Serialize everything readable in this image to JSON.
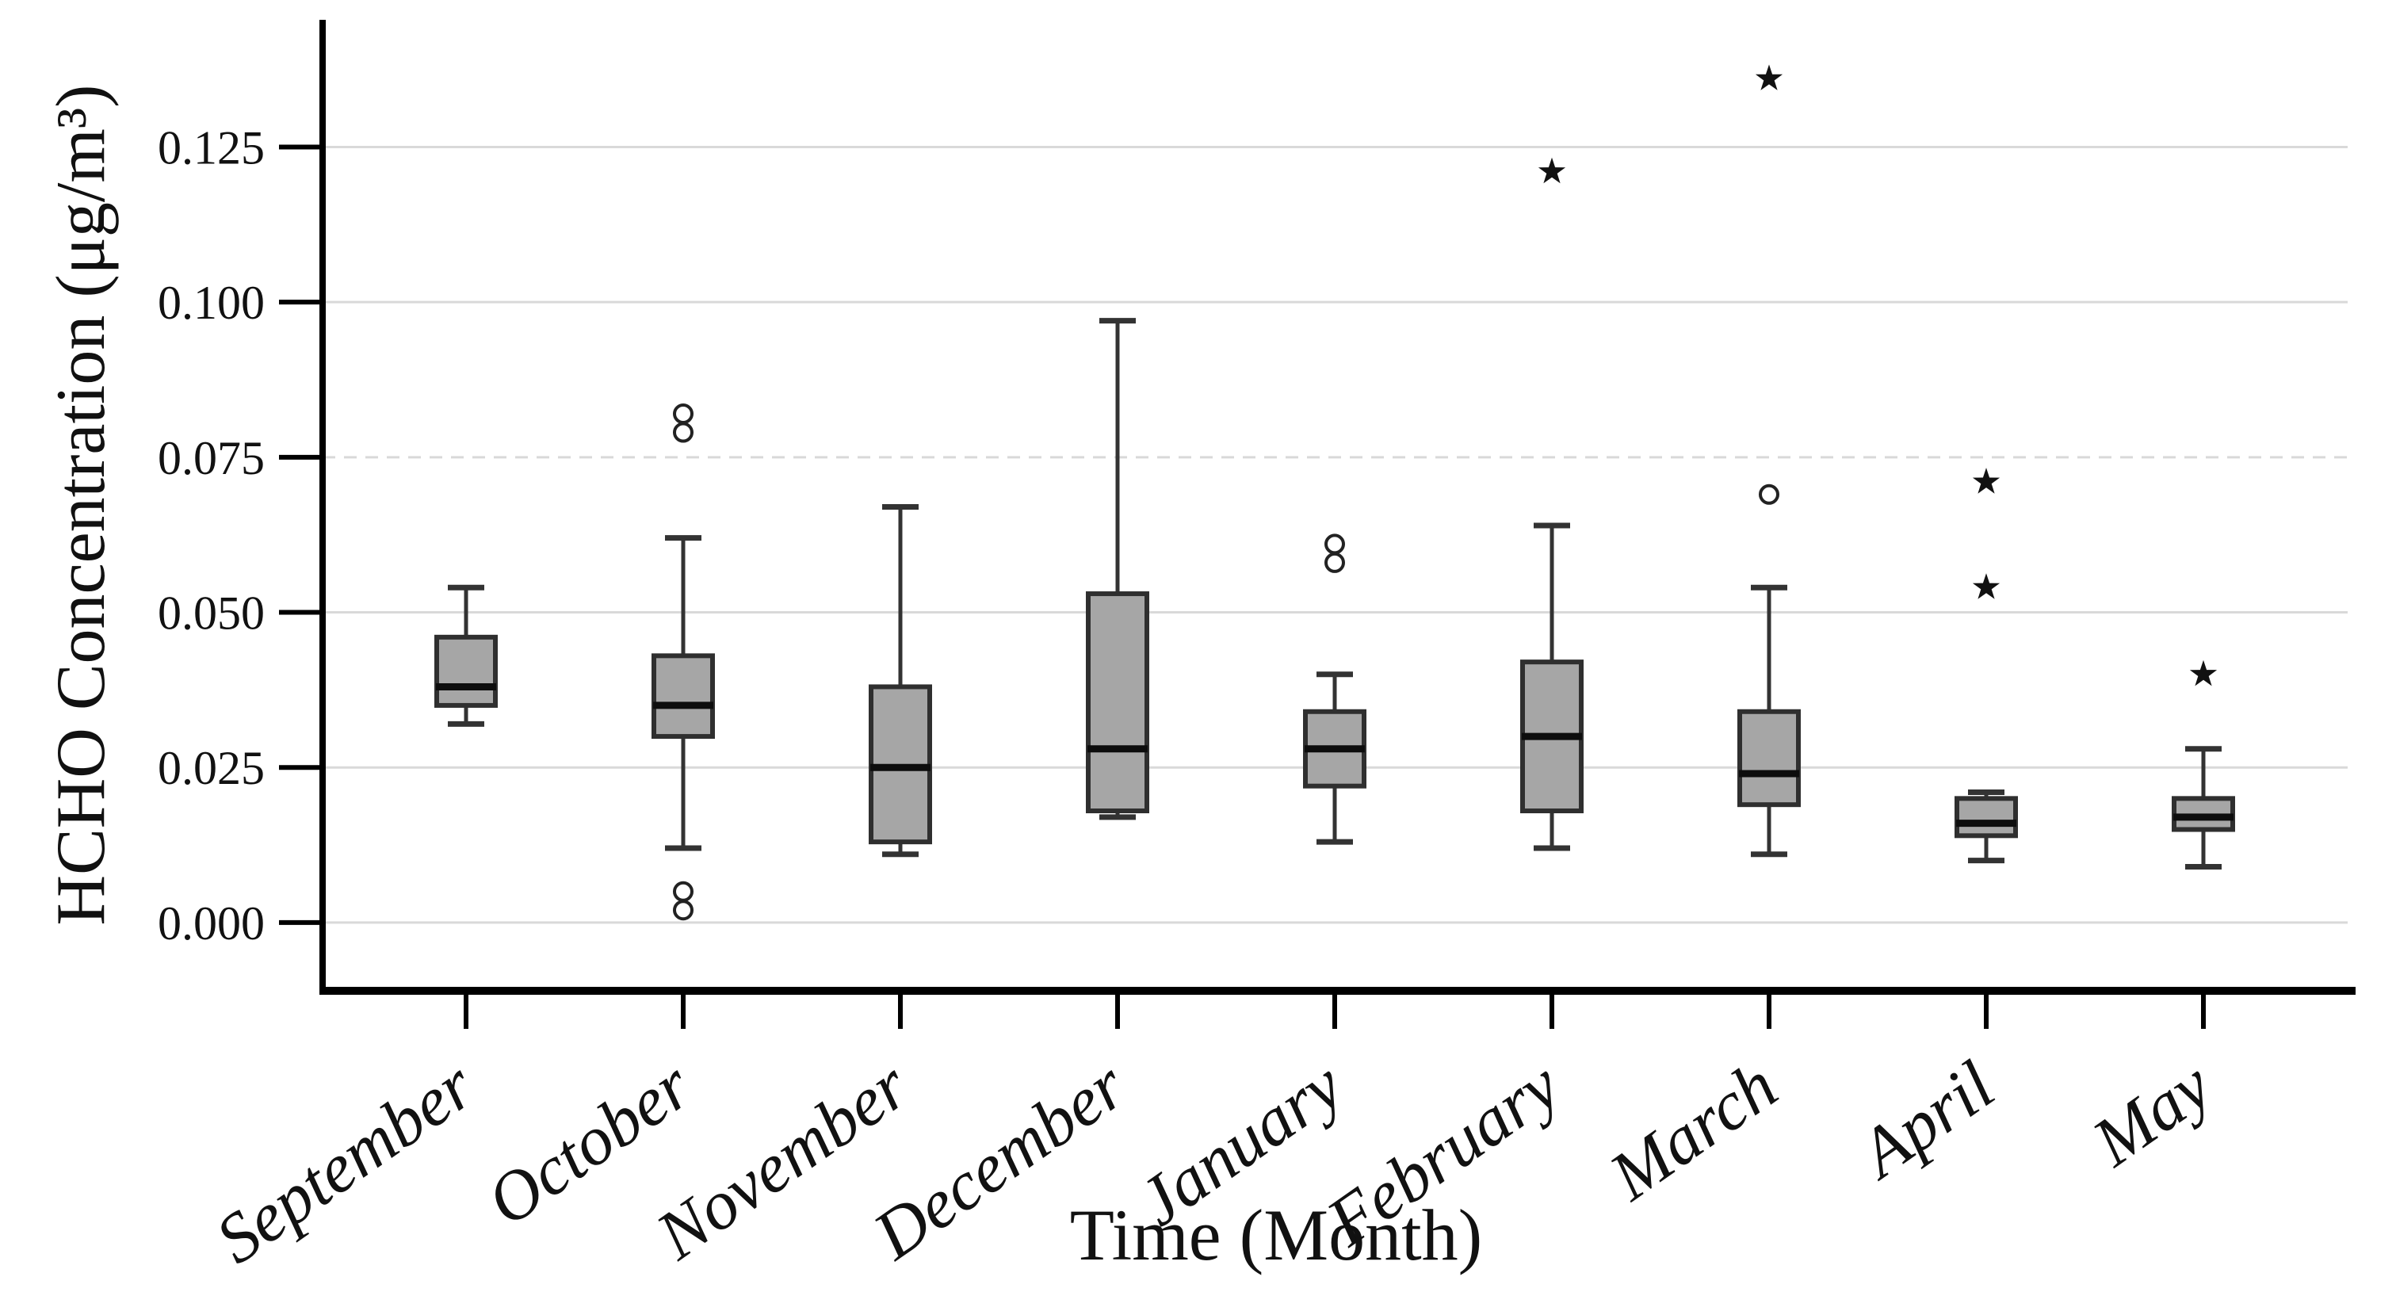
{
  "chart_data": {
    "type": "boxplot",
    "title": "",
    "xlabel": "Time (Month)",
    "ylabel": "HCHO Concentration (μg/m³)",
    "ylim": [
      -0.011,
      0.1455
    ],
    "grid": "horizontal-light-gray",
    "legend": "none",
    "yticks": [
      {
        "label": "0.000",
        "value": 0.0
      },
      {
        "label": "0.025",
        "value": 0.025
      },
      {
        "label": "0.050",
        "value": 0.05
      },
      {
        "label": "0.075",
        "value": 0.075,
        "dashed": true
      },
      {
        "label": "0.100",
        "value": 0.1
      },
      {
        "label": "0.125",
        "value": 0.125
      }
    ],
    "categories": [
      "September",
      "October",
      "November",
      "December",
      "January",
      "February",
      "March",
      "April",
      "May"
    ],
    "series": [
      {
        "month": "September",
        "whisker_low": 0.032,
        "q1": 0.035,
        "median": 0.038,
        "q3": 0.046,
        "whisker_high": 0.054,
        "outliers_circle": [],
        "outliers_star": []
      },
      {
        "month": "October",
        "whisker_low": 0.012,
        "q1": 0.03,
        "median": 0.035,
        "q3": 0.043,
        "whisker_high": 0.062,
        "outliers_circle": [
          0.082,
          0.079,
          0.005,
          0.002
        ],
        "outliers_star": []
      },
      {
        "month": "November",
        "whisker_low": 0.011,
        "q1": 0.013,
        "median": 0.025,
        "q3": 0.038,
        "whisker_high": 0.067,
        "outliers_circle": [],
        "outliers_star": []
      },
      {
        "month": "December",
        "whisker_low": 0.017,
        "q1": 0.018,
        "median": 0.028,
        "q3": 0.053,
        "whisker_high": 0.097,
        "outliers_circle": [],
        "outliers_star": []
      },
      {
        "month": "January",
        "whisker_low": 0.013,
        "q1": 0.022,
        "median": 0.028,
        "q3": 0.034,
        "whisker_high": 0.04,
        "outliers_circle": [
          0.061,
          0.058
        ],
        "outliers_star": []
      },
      {
        "month": "February",
        "whisker_low": 0.012,
        "q1": 0.018,
        "median": 0.03,
        "q3": 0.042,
        "whisker_high": 0.064,
        "outliers_circle": [],
        "outliers_star": [
          0.121
        ]
      },
      {
        "month": "March",
        "whisker_low": 0.011,
        "q1": 0.019,
        "median": 0.024,
        "q3": 0.034,
        "whisker_high": 0.054,
        "outliers_circle": [
          0.069
        ],
        "outliers_star": [
          0.136
        ]
      },
      {
        "month": "April",
        "whisker_low": 0.01,
        "q1": 0.014,
        "median": 0.016,
        "q3": 0.02,
        "whisker_high": 0.021,
        "outliers_circle": [],
        "outliers_star": [
          0.071,
          0.054
        ]
      },
      {
        "month": "May",
        "whisker_low": 0.009,
        "q1": 0.015,
        "median": 0.017,
        "q3": 0.02,
        "whisker_high": 0.028,
        "outliers_circle": [],
        "outliers_star": [
          0.04
        ]
      }
    ],
    "colors": {
      "box_fill": "#a6a6a6",
      "box_border": "#2f2f2f",
      "median": "#0d0d0d",
      "whisker": "#333333",
      "gridline": "#d9d9d9",
      "axis": "#000000",
      "background": "#ffffff"
    }
  }
}
